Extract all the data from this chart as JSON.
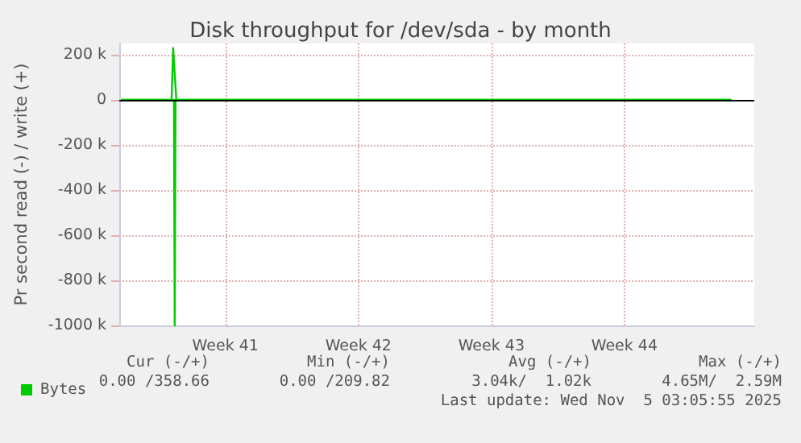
{
  "chart_data": {
    "type": "line",
    "title": "Disk throughput for /dev/sda - by month",
    "ylabel": "Pr second read (-) / write (+)",
    "xlim": [
      "2025-10-03T22:00",
      "2025-11-06T08:00"
    ],
    "xticks": [
      {
        "value": "2025-10-09T12:00",
        "label": "Week 41"
      },
      {
        "value": "2025-10-16T12:00",
        "label": "Week 42"
      },
      {
        "value": "2025-10-23T12:00",
        "label": "Week 43"
      },
      {
        "value": "2025-10-30T12:00",
        "label": "Week 44"
      }
    ],
    "ylim": [
      -1000000,
      250000
    ],
    "yticks": [
      {
        "value": 200000,
        "label": "200 k"
      },
      0,
      {
        "value": -200000,
        "label": "-200 k"
      },
      {
        "value": -400000,
        "label": "-400 k"
      },
      {
        "value": -600000,
        "label": "-600 k"
      },
      {
        "value": -800000,
        "label": "-800 k"
      },
      {
        "value": -1000000,
        "label": "-1000 k"
      }
    ],
    "series": [
      {
        "name": "Bytes",
        "color": "#00cc00",
        "x": [
          "2025-10-04",
          "2025-10-06T16:00",
          "2025-10-06T18:00",
          "2025-10-06T22:00",
          "2025-11-05T03:00"
        ],
        "values": [
          0,
          0,
          230000,
          0,
          0
        ]
      },
      {
        "color": "#00cc00",
        "x": [
          "2025-10-04",
          "2025-10-06T19:00",
          "2025-10-06T20:00",
          "2025-10-06T21:00",
          "2025-11-05T03:00"
        ],
        "values": [
          0,
          0,
          -1000000,
          0,
          0
        ]
      }
    ],
    "ref_lines": [
      {
        "axis": "y",
        "value": 0,
        "color": "#000000"
      }
    ],
    "grid": true,
    "legend": "bottom left",
    "marker": "none",
    "line_style": "solid",
    "annotations": [
      "Cur (-/+)",
      "Min (-/+)",
      "Avg (-/+)",
      "Max (-/+)",
      "0.00 /358.66",
      "0.00 /209.82",
      "3.04k/  1.02k",
      "4.65M/  2.59M",
      "Last update: Wed Nov  5 03:05:55 2025"
    ]
  }
}
